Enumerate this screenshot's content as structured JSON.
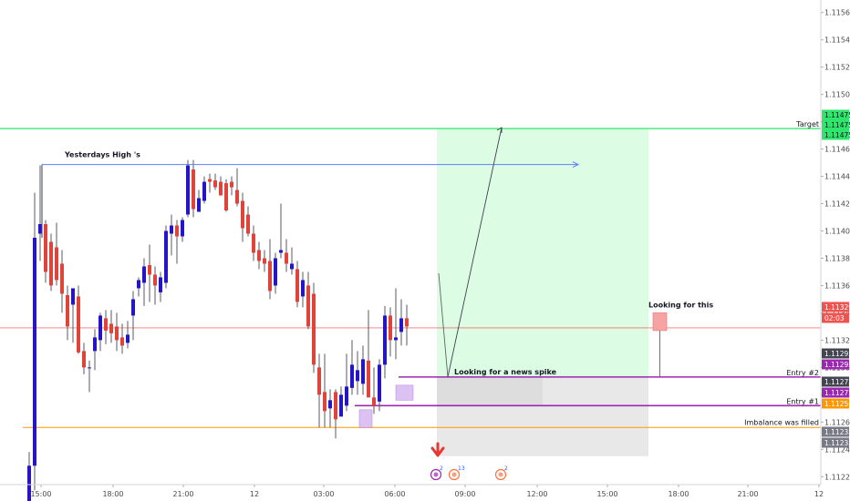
{
  "chart_data": {
    "type": "candlestick",
    "y_ticks": [
      "1.11560",
      "1.11540",
      "1.11520",
      "1.11500",
      "1.11480",
      "1.11460",
      "1.11440",
      "1.11420",
      "1.11400",
      "1.11380",
      "1.11360",
      "1.11340",
      "1.11320",
      "1.11300",
      "1.11280",
      "1.11260",
      "1.11240",
      "1.11220"
    ],
    "x_ticks": [
      "15:00",
      "18:00",
      "21:00",
      "12",
      "03:00",
      "06:00",
      "09:00",
      "12:00",
      "15:00",
      "18:00",
      "21:00",
      "12"
    ],
    "ylim": [
      1.112135,
      1.115645
    ],
    "bullish_color": "#2416c8",
    "bearish_color": "#e0433a",
    "candles": [
      {
        "o": 1.11198,
        "h": 1.11238,
        "l": 1.11196,
        "c": 1.11228
      },
      {
        "o": 1.11228,
        "h": 1.11428,
        "l": 1.1121,
        "c": 1.11395
      },
      {
        "o": 1.11398,
        "h": 1.11448,
        "l": 1.11378,
        "c": 1.11405
      },
      {
        "o": 1.11405,
        "h": 1.11408,
        "l": 1.11362,
        "c": 1.1137
      },
      {
        "o": 1.11392,
        "h": 1.11398,
        "l": 1.11356,
        "c": 1.1136
      },
      {
        "o": 1.11388,
        "h": 1.11406,
        "l": 1.1136,
        "c": 1.11364
      },
      {
        "o": 1.11376,
        "h": 1.11386,
        "l": 1.1134,
        "c": 1.11354
      },
      {
        "o": 1.11353,
        "h": 1.1136,
        "l": 1.1132,
        "c": 1.1133
      },
      {
        "o": 1.11346,
        "h": 1.11358,
        "l": 1.11318,
        "c": 1.11358
      },
      {
        "o": 1.11352,
        "h": 1.1136,
        "l": 1.1131,
        "c": 1.11311
      },
      {
        "o": 1.11312,
        "h": 1.11318,
        "l": 1.11295,
        "c": 1.113
      },
      {
        "o": 1.113,
        "h": 1.11305,
        "l": 1.11282,
        "c": 1.113
      },
      {
        "o": 1.11312,
        "h": 1.11328,
        "l": 1.11298,
        "c": 1.11322
      },
      {
        "o": 1.1132,
        "h": 1.1134,
        "l": 1.11312,
        "c": 1.11338
      },
      {
        "o": 1.11336,
        "h": 1.11342,
        "l": 1.11317,
        "c": 1.11327
      },
      {
        "o": 1.11332,
        "h": 1.11342,
        "l": 1.11318,
        "c": 1.11325
      },
      {
        "o": 1.1133,
        "h": 1.1134,
        "l": 1.11312,
        "c": 1.1132
      },
      {
        "o": 1.11322,
        "h": 1.11332,
        "l": 1.1131,
        "c": 1.11316
      },
      {
        "o": 1.11318,
        "h": 1.11334,
        "l": 1.11314,
        "c": 1.11324
      },
      {
        "o": 1.11338,
        "h": 1.11356,
        "l": 1.1132,
        "c": 1.1135
      },
      {
        "o": 1.11358,
        "h": 1.11366,
        "l": 1.11352,
        "c": 1.11364
      },
      {
        "o": 1.11362,
        "h": 1.1138,
        "l": 1.11345,
        "c": 1.11374
      },
      {
        "o": 1.11375,
        "h": 1.1139,
        "l": 1.11348,
        "c": 1.11368
      },
      {
        "o": 1.11368,
        "h": 1.11374,
        "l": 1.11346,
        "c": 1.1136
      },
      {
        "o": 1.11355,
        "h": 1.1137,
        "l": 1.11348,
        "c": 1.11366
      },
      {
        "o": 1.11362,
        "h": 1.11404,
        "l": 1.11358,
        "c": 1.114
      },
      {
        "o": 1.11398,
        "h": 1.11412,
        "l": 1.11382,
        "c": 1.11404
      },
      {
        "o": 1.11404,
        "h": 1.11408,
        "l": 1.11376,
        "c": 1.11396
      },
      {
        "o": 1.11396,
        "h": 1.1141,
        "l": 1.11392,
        "c": 1.11408
      },
      {
        "o": 1.11412,
        "h": 1.11452,
        "l": 1.1141,
        "c": 1.11448
      },
      {
        "o": 1.11445,
        "h": 1.11452,
        "l": 1.1141,
        "c": 1.11416
      },
      {
        "o": 1.11414,
        "h": 1.1143,
        "l": 1.11414,
        "c": 1.11424
      },
      {
        "o": 1.11422,
        "h": 1.1144,
        "l": 1.1142,
        "c": 1.11436
      },
      {
        "o": 1.11438,
        "h": 1.11442,
        "l": 1.11428,
        "c": 1.11436
      },
      {
        "o": 1.11437,
        "h": 1.11442,
        "l": 1.1143,
        "c": 1.11432
      },
      {
        "o": 1.11436,
        "h": 1.1144,
        "l": 1.11428,
        "c": 1.11426
      },
      {
        "o": 1.11435,
        "h": 1.11438,
        "l": 1.11414,
        "c": 1.11415
      },
      {
        "o": 1.11436,
        "h": 1.1144,
        "l": 1.11426,
        "c": 1.11432
      },
      {
        "o": 1.1143,
        "h": 1.11446,
        "l": 1.11418,
        "c": 1.1142
      },
      {
        "o": 1.11422,
        "h": 1.11428,
        "l": 1.11392,
        "c": 1.11402
      },
      {
        "o": 1.11412,
        "h": 1.11418,
        "l": 1.11396,
        "c": 1.11398
      },
      {
        "o": 1.11398,
        "h": 1.11404,
        "l": 1.11378,
        "c": 1.11384
      },
      {
        "o": 1.11386,
        "h": 1.11392,
        "l": 1.11372,
        "c": 1.11378
      },
      {
        "o": 1.1138,
        "h": 1.11386,
        "l": 1.1137,
        "c": 1.11376
      },
      {
        "o": 1.11378,
        "h": 1.11394,
        "l": 1.1135,
        "c": 1.11356
      },
      {
        "o": 1.1136,
        "h": 1.11384,
        "l": 1.11354,
        "c": 1.1138
      },
      {
        "o": 1.11384,
        "h": 1.1142,
        "l": 1.1138,
        "c": 1.11386
      },
      {
        "o": 1.11384,
        "h": 1.11394,
        "l": 1.1137,
        "c": 1.11376
      },
      {
        "o": 1.11372,
        "h": 1.11388,
        "l": 1.11368,
        "c": 1.11376
      },
      {
        "o": 1.11372,
        "h": 1.11378,
        "l": 1.11344,
        "c": 1.11348
      },
      {
        "o": 1.11352,
        "h": 1.1137,
        "l": 1.11344,
        "c": 1.11364
      },
      {
        "o": 1.1136,
        "h": 1.1137,
        "l": 1.11328,
        "c": 1.1133
      },
      {
        "o": 1.11354,
        "h": 1.11362,
        "l": 1.11296,
        "c": 1.11302
      },
      {
        "o": 1.113,
        "h": 1.1131,
        "l": 1.11256,
        "c": 1.1128
      },
      {
        "o": 1.11282,
        "h": 1.1131,
        "l": 1.11256,
        "c": 1.11268
      },
      {
        "o": 1.1127,
        "h": 1.11284,
        "l": 1.11256,
        "c": 1.11276
      },
      {
        "o": 1.11282,
        "h": 1.11284,
        "l": 1.11248,
        "c": 1.11262
      },
      {
        "o": 1.11264,
        "h": 1.11286,
        "l": 1.11264,
        "c": 1.1128
      },
      {
        "o": 1.11272,
        "h": 1.1131,
        "l": 1.11268,
        "c": 1.11286
      },
      {
        "o": 1.11285,
        "h": 1.1132,
        "l": 1.1128,
        "c": 1.11302
      },
      {
        "o": 1.1129,
        "h": 1.11312,
        "l": 1.1128,
        "c": 1.11298
      },
      {
        "o": 1.11288,
        "h": 1.11316,
        "l": 1.1128,
        "c": 1.11306
      },
      {
        "o": 1.11305,
        "h": 1.11342,
        "l": 1.1128,
        "c": 1.11278
      },
      {
        "o": 1.11278,
        "h": 1.113,
        "l": 1.11266,
        "c": 1.11272
      },
      {
        "o": 1.11275,
        "h": 1.11306,
        "l": 1.11268,
        "c": 1.11302
      },
      {
        "o": 1.11302,
        "h": 1.11345,
        "l": 1.11292,
        "c": 1.11338
      },
      {
        "o": 1.11338,
        "h": 1.11344,
        "l": 1.11308,
        "c": 1.1132
      },
      {
        "o": 1.1132,
        "h": 1.11358,
        "l": 1.11306,
        "c": 1.11322
      },
      {
        "o": 1.11326,
        "h": 1.1135,
        "l": 1.11316,
        "c": 1.11336
      },
      {
        "o": 1.11336,
        "h": 1.11346,
        "l": 1.11316,
        "c": 1.1133
      }
    ],
    "price_tags": [
      {
        "value": 1.11475,
        "label": "1.11475",
        "color": "#2ee66b",
        "text_color": "#131722"
      },
      {
        "value": 1.11475,
        "label": "1.11475",
        "color": "#2ee66b",
        "text_color": "#131722"
      },
      {
        "value": 1.11475,
        "label": "1.11475",
        "color": "#2ee66b",
        "text_color": "#131722"
      },
      {
        "value": 1.11329,
        "label": "1.11329",
        "color": "#ef5350",
        "text_color": "#ffffff"
      },
      {
        "value": 1.11329,
        "label": "02:03",
        "color": "#ef5350",
        "text_color": "#ffffff"
      },
      {
        "value": 1.11293,
        "label": "1.11293",
        "color": "#434651",
        "text_color": "#ffffff"
      },
      {
        "value": 1.11293,
        "label": "1.11293",
        "color": "#9c27b0",
        "text_color": "#ffffff"
      },
      {
        "value": 1.11272,
        "label": "1.11272",
        "color": "#434651",
        "text_color": "#ffffff"
      },
      {
        "value": 1.11272,
        "label": "1.11272",
        "color": "#9c27b0",
        "text_color": "#ffffff"
      },
      {
        "value": 1.11256,
        "label": "1.11256",
        "color": "#ff9800",
        "text_color": "#ffffff"
      },
      {
        "value": 1.11235,
        "label": "1.11235",
        "color": "#787b86",
        "text_color": "#ffffff"
      },
      {
        "value": 1.11235,
        "label": "1.11235",
        "color": "#787b86",
        "text_color": "#ffffff"
      }
    ],
    "annotations": {
      "yesterdays_high": "Yesterdays High 's",
      "news_spike": "Looking for a news spike",
      "looking_for_this": "Looking for this",
      "target": "Target",
      "entry2": "Entry #2",
      "entry1": "Entry #1",
      "imbalance": "Imbalance was filled"
    },
    "levels": {
      "target": 1.11475,
      "current_price": 1.11329,
      "entry2": 1.11293,
      "entry1": 1.11272,
      "imbalance": 1.11256,
      "stop": 1.11235,
      "yesterdays_high": 1.11448,
      "looking_for_this_top": 1.1134,
      "looking_for_this_bottom": 1.11327
    },
    "events": [
      {
        "badge": "2",
        "color": "#9c27b0"
      },
      {
        "badge": "13",
        "color": "#ff7043"
      },
      {
        "badge": "2",
        "color": "#ff7043"
      }
    ],
    "colors": {
      "profit_zone": "#dcfde3",
      "loss_zone": "#e8e8e8",
      "target_line": "#2ee66b",
      "entry_line": "#9c27b0",
      "imbalance_line": "#ff9800",
      "price_line": "#ef5350",
      "ray_line": "#5b7fff",
      "imbalance_box": "#d7b8f0",
      "alert_box": "#f5a3a3",
      "alert_arrow": "#e53935"
    }
  }
}
